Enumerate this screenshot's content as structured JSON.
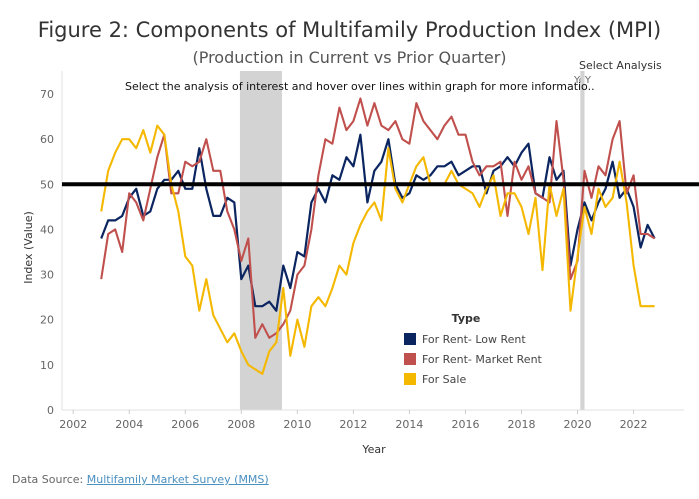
{
  "header": {
    "title": "Figure 2: Components of Multifamily Production Index (MPI)",
    "subtitle": "(Production in Current vs Prior Quarter)"
  },
  "controls": {
    "select_label": "Select Analysis",
    "selected_value": "YoY"
  },
  "footer": {
    "source_prefix": "Data Source: ",
    "source_link": "Multifamily Market Survey (MMS)"
  },
  "chart_data": {
    "type": "line",
    "note": "Select the analysis of interest and hover over lines within graph for more informatio..",
    "xlabel": "Year",
    "ylabel": "Index (Value)",
    "xlim": [
      2001.6,
      2023.8
    ],
    "ylim": [
      0,
      72
    ],
    "x_ticks": [
      2002,
      2004,
      2006,
      2008,
      2010,
      2012,
      2014,
      2016,
      2018,
      2020,
      2022
    ],
    "y_ticks": [
      0,
      10,
      20,
      30,
      40,
      50,
      60,
      70
    ],
    "reference_line": 50,
    "shaded_ranges": [
      [
        2007.95,
        2009.45
      ],
      [
        2020.1,
        2020.25
      ]
    ],
    "grid": false,
    "legend": {
      "title": "Type",
      "placement": "center-bottom"
    },
    "x": [
      2003.0,
      2003.25,
      2003.5,
      2003.75,
      2004.0,
      2004.25,
      2004.5,
      2004.75,
      2005.0,
      2005.25,
      2005.5,
      2005.75,
      2006.0,
      2006.25,
      2006.5,
      2006.75,
      2007.0,
      2007.25,
      2007.5,
      2007.75,
      2008.0,
      2008.25,
      2008.5,
      2008.75,
      2009.0,
      2009.25,
      2009.5,
      2009.75,
      2010.0,
      2010.25,
      2010.5,
      2010.75,
      2011.0,
      2011.25,
      2011.5,
      2011.75,
      2012.0,
      2012.25,
      2012.5,
      2012.75,
      2013.0,
      2013.25,
      2013.5,
      2013.75,
      2014.0,
      2014.25,
      2014.5,
      2014.75,
      2015.0,
      2015.25,
      2015.5,
      2015.75,
      2016.0,
      2016.25,
      2016.5,
      2016.75,
      2017.0,
      2017.25,
      2017.5,
      2017.75,
      2018.0,
      2018.25,
      2018.5,
      2018.75,
      2019.0,
      2019.25,
      2019.5,
      2019.75,
      2020.0,
      2020.25,
      2020.5,
      2020.75,
      2021.0,
      2021.25,
      2021.5,
      2021.75,
      2022.0,
      2022.25,
      2022.5,
      2022.75
    ],
    "series": [
      {
        "name": "For Rent- Low Rent",
        "color": "#0b2560",
        "values": [
          38,
          42,
          42,
          43,
          47,
          49,
          43,
          44,
          49,
          51,
          51,
          53,
          49,
          49,
          58,
          49,
          43,
          43,
          47,
          46,
          29,
          32,
          23,
          23,
          24,
          22,
          32,
          27,
          35,
          34,
          46,
          49,
          46,
          52,
          51,
          56,
          54,
          61,
          46,
          53,
          55,
          60,
          50,
          47,
          48,
          52,
          51,
          52,
          54,
          54,
          55,
          52,
          53,
          54,
          54,
          48,
          53,
          54,
          56,
          54,
          57,
          59,
          48,
          47,
          56,
          51,
          53,
          32,
          40,
          46,
          42,
          46,
          49,
          55,
          47,
          49,
          45,
          36,
          41,
          38
        ]
      },
      {
        "name": "For Rent- Market Rent",
        "color": "#c0504d",
        "values": [
          29,
          39,
          40,
          35,
          48,
          46,
          42,
          49,
          56,
          61,
          48,
          48,
          55,
          54,
          55,
          60,
          53,
          53,
          44,
          40,
          33,
          38,
          16,
          19,
          16,
          17,
          19,
          22,
          30,
          32,
          40,
          52,
          60,
          59,
          67,
          62,
          64,
          69,
          63,
          68,
          63,
          62,
          64,
          60,
          59,
          68,
          64,
          62,
          60,
          63,
          65,
          61,
          61,
          55,
          52,
          54,
          54,
          55,
          43,
          55,
          51,
          54,
          48,
          47,
          46,
          64,
          51,
          29,
          33,
          53,
          47,
          54,
          52,
          60,
          64,
          48,
          52,
          39,
          39,
          38
        ]
      },
      {
        "name": "For Sale",
        "color": "#f5b800",
        "values": [
          44,
          53,
          57,
          60,
          60,
          58,
          62,
          57,
          63,
          61,
          50,
          44,
          34,
          32,
          22,
          29,
          21,
          18,
          15,
          17,
          13,
          10,
          9,
          8,
          13,
          15,
          27,
          12,
          20,
          14,
          23,
          25,
          23,
          27,
          32,
          30,
          37,
          41,
          44,
          46,
          42,
          58,
          49,
          46,
          50,
          54,
          56,
          50,
          50,
          50,
          53,
          50,
          49,
          48,
          45,
          49,
          52,
          43,
          48,
          48,
          45,
          39,
          47,
          31,
          50,
          43,
          49,
          22,
          34,
          45,
          39,
          49,
          45,
          47,
          55,
          46,
          32,
          23,
          23,
          23
        ]
      }
    ]
  }
}
